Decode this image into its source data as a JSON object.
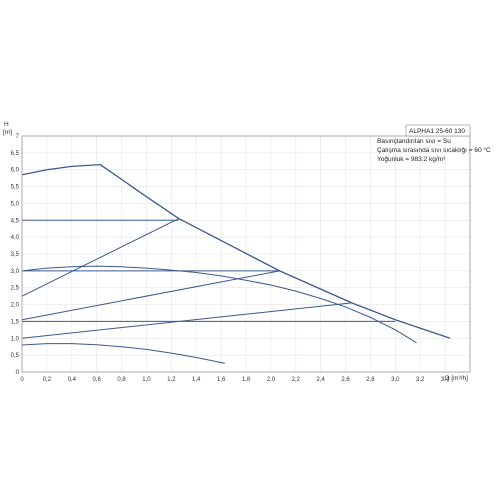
{
  "chart_data": {
    "type": "line",
    "title": "",
    "xlabel": "Q [m³/h]",
    "ylabel": "H\n[m]",
    "xlim": [
      0,
      3.6
    ],
    "ylim": [
      0,
      7
    ],
    "grid": true,
    "x_ticks": [
      "0",
      "0,2",
      "0,4",
      "0,6",
      "0,8",
      "1,0",
      "1,2",
      "1,4",
      "1,6",
      "1,8",
      "2,0",
      "2,2",
      "2,4",
      "2,6",
      "2,8",
      "3,0",
      "3,2",
      "3,4"
    ],
    "y_ticks": [
      "0",
      "0,5",
      "1,0",
      "1,5",
      "2,0",
      "2,5",
      "3,0",
      "3,5",
      "4,0",
      "4,5",
      "5,0",
      "5,5",
      "6,0",
      "6,5",
      "7"
    ],
    "info_box": {
      "model": "ALPHA1 25-60 130",
      "lines": [
        "Basınçlandırılan sıvı = Su",
        "Çalışma sırasında sıvı sıcaklığı = 60 °C",
        "Yoğunluk = 983.2 kg/m³"
      ]
    },
    "series": [
      {
        "id": "max-curve",
        "points": [
          [
            0,
            5.85
          ],
          [
            0.2,
            6.0
          ],
          [
            0.4,
            6.1
          ],
          [
            0.63,
            6.15
          ],
          [
            1.0,
            5.2
          ],
          [
            1.26,
            4.55
          ],
          [
            2.07,
            3.0
          ],
          [
            2.65,
            2.05
          ],
          [
            3.0,
            1.55
          ],
          [
            3.44,
            1.0
          ]
        ]
      },
      {
        "id": "constant-4.5",
        "points": [
          [
            0,
            4.5
          ],
          [
            1.26,
            4.5
          ]
        ]
      },
      {
        "id": "constant-3.0",
        "points": [
          [
            0,
            3.0
          ],
          [
            2.07,
            3.0
          ]
        ]
      },
      {
        "id": "constant-1.5",
        "points": [
          [
            0,
            1.5
          ],
          [
            3.0,
            1.5
          ]
        ]
      },
      {
        "id": "proportional-high",
        "points": [
          [
            0,
            2.25
          ],
          [
            1.26,
            4.55
          ]
        ]
      },
      {
        "id": "proportional-mid",
        "points": [
          [
            0,
            1.55
          ],
          [
            2.07,
            3.0
          ]
        ]
      },
      {
        "id": "proportional-low",
        "points": [
          [
            0,
            1.0
          ],
          [
            2.65,
            2.05
          ]
        ]
      },
      {
        "id": "fixed-speed-2",
        "points": [
          [
            0,
            3.0
          ],
          [
            0.2,
            3.08
          ],
          [
            0.4,
            3.12
          ],
          [
            0.6,
            3.14
          ],
          [
            0.8,
            3.12
          ],
          [
            1.0,
            3.08
          ],
          [
            1.2,
            3.02
          ],
          [
            1.4,
            2.95
          ],
          [
            1.6,
            2.85
          ],
          [
            1.8,
            2.72
          ],
          [
            2.0,
            2.58
          ],
          [
            2.2,
            2.4
          ],
          [
            2.4,
            2.18
          ],
          [
            2.6,
            1.93
          ],
          [
            2.8,
            1.62
          ],
          [
            3.0,
            1.25
          ],
          [
            3.17,
            0.87
          ]
        ]
      },
      {
        "id": "fixed-speed-1",
        "points": [
          [
            0,
            0.8
          ],
          [
            0.2,
            0.84
          ],
          [
            0.4,
            0.84
          ],
          [
            0.6,
            0.81
          ],
          [
            0.8,
            0.75
          ],
          [
            1.0,
            0.67
          ],
          [
            1.2,
            0.56
          ],
          [
            1.4,
            0.43
          ],
          [
            1.63,
            0.26
          ]
        ]
      }
    ]
  }
}
